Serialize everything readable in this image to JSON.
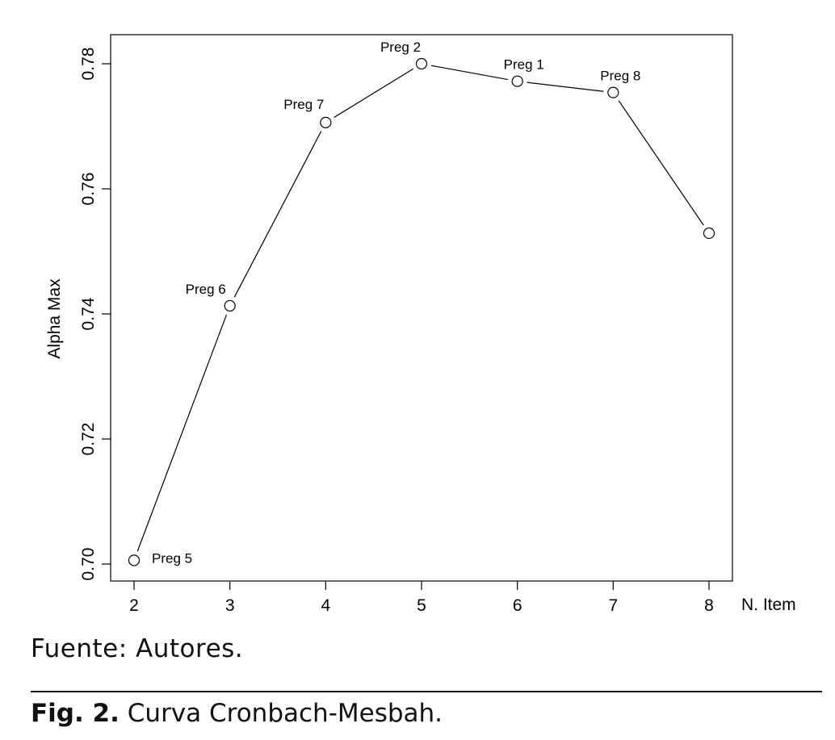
{
  "chart_data": {
    "type": "line",
    "xlabel": "N. Item",
    "ylabel": "Alpha Max",
    "x": [
      2,
      3,
      4,
      5,
      6,
      7,
      8
    ],
    "values": [
      0.7006,
      0.7413,
      0.7706,
      0.78,
      0.7772,
      0.7754,
      0.7529
    ],
    "point_labels": [
      "Preg 5",
      "Preg 6",
      "Preg 7",
      "Preg 2",
      "Preg 1",
      "Preg 8",
      ""
    ],
    "xticks": [
      "2",
      "3",
      "4",
      "5",
      "6",
      "7",
      "8"
    ],
    "yticks": [
      "0.70",
      "0.72",
      "0.74",
      "0.76",
      "0.78"
    ],
    "xlim": [
      1.75,
      8.25
    ],
    "ylim": [
      0.6975,
      0.7846
    ],
    "grid": false,
    "marker": "open-circle",
    "line_color": "#000000"
  },
  "source_text": "Fuente: Autores.",
  "caption": {
    "label": "Fig. 2.",
    "text": " Curva Cronbach-Mesbah."
  }
}
